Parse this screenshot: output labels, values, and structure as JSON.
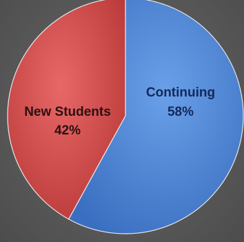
{
  "chart_data": {
    "type": "pie",
    "title": "",
    "slices": [
      {
        "label": "Continuing",
        "value": 58,
        "pct_label": "58%",
        "color": "#4a82d0",
        "text_color": "#13285a"
      },
      {
        "label": "New Students",
        "value": 42,
        "pct_label": "42%",
        "color": "#d04848",
        "text_color": "#2a1010"
      }
    ],
    "start": "top, clockwise",
    "legend": "none",
    "border_color": "#e8e8e8"
  }
}
